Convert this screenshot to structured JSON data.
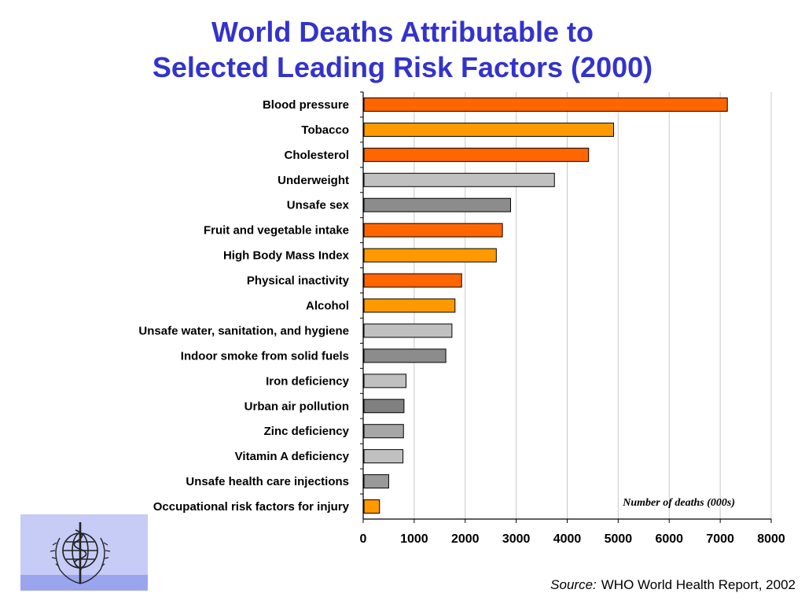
{
  "title": {
    "line1": "World Deaths Attributable to",
    "line2": "Selected Leading Risk Factors (2000)"
  },
  "colors": {
    "title": "#3333cc",
    "orange_dark": "#ff6600",
    "orange_light": "#ff9900",
    "gray_light": "#c0c0c0",
    "gray_dark": "#8c8c8c"
  },
  "chart_data": {
    "type": "bar",
    "orientation": "horizontal",
    "categories": [
      "Blood pressure",
      "Tobacco",
      "Cholesterol",
      "Underweight",
      "Unsafe sex",
      "Fruit and vegetable intake",
      "High Body Mass Index",
      "Physical inactivity",
      "Alcohol",
      "Unsafe water, sanitation, and hygiene",
      "Indoor smoke from solid fuels",
      "Iron deficiency",
      "Urban air pollution",
      "Zinc deficiency",
      "Vitamin A deficiency",
      "Unsafe health care injections",
      "Occupational risk factors for injury"
    ],
    "values": [
      7140,
      4910,
      4420,
      3750,
      2890,
      2730,
      2610,
      1930,
      1800,
      1740,
      1620,
      840,
      800,
      790,
      780,
      500,
      320
    ],
    "bar_colors": [
      "#ff6600",
      "#ff9900",
      "#ff6600",
      "#c0c0c0",
      "#8c8c8c",
      "#ff6600",
      "#ff9900",
      "#ff6600",
      "#ff9900",
      "#c0c0c0",
      "#8c8c8c",
      "#c0c0c0",
      "#808080",
      "#a6a6a6",
      "#c0c0c0",
      "#999999",
      "#ff9900"
    ],
    "xlim": [
      0,
      8000
    ],
    "xticks": [
      0,
      1000,
      2000,
      3000,
      4000,
      5000,
      6000,
      7000,
      8000
    ],
    "xtick_labels": [
      "0",
      "1000",
      "2000",
      "3000",
      "4000",
      "5000",
      "6000",
      "7000",
      "8000"
    ],
    "xlabel": "Number of deaths (000s)",
    "grid": "vertical",
    "legend": "none"
  },
  "source": {
    "label": "Source:",
    "text": "WHO World Health Report, 2002"
  },
  "logo": {
    "icon": "who-emblem-icon"
  }
}
